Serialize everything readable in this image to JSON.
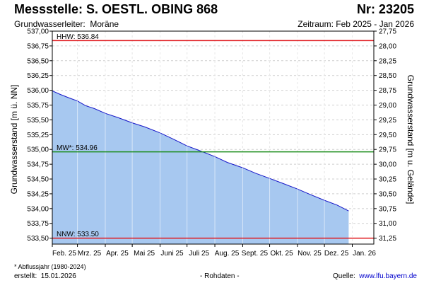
{
  "header": {
    "title": "Messstelle: S. OESTL. OBING 868",
    "number": "Nr: 23205",
    "aquifer_label": "Grundwasserleiter:",
    "aquifer_value": "Moräne",
    "period": "Zeitraum: Feb 2025 - Jan 2026"
  },
  "footer": {
    "footnote": "* Abflussjahr (1980-2024)",
    "created_label": "erstellt:",
    "created_date": "15.01.2026",
    "rawdata": "- Rohdaten -",
    "source_label": "Quelle:",
    "source_link": "www.lfu.bayern.de"
  },
  "colors": {
    "area_fill": "#a7c8f0",
    "series_line": "#1515c8",
    "hhw_line": "#e0191e",
    "nnw_line": "#e0191e",
    "mw_line": "#1a8c1a",
    "grid": "#cfcfcf",
    "source_link": "#0000cc"
  },
  "chart_data": {
    "type": "area",
    "ylabel_left": "Grundwasserstand [m ü. NN]",
    "ylabel_right": "Grundwasserstand [m u. Gelände]",
    "ylim": [
      533.4,
      537.0
    ],
    "yticks_left": [
      "537,00",
      "536,75",
      "536,50",
      "536,25",
      "536,00",
      "535,75",
      "535,50",
      "535,25",
      "535,00",
      "534,75",
      "534,50",
      "534,25",
      "534,00",
      "533,75",
      "533,50"
    ],
    "yticks_right": [
      "27,75",
      "28,00",
      "28,25",
      "28,50",
      "28,75",
      "29,00",
      "29,25",
      "29,50",
      "29,75",
      "30,00",
      "30,25",
      "30,50",
      "30,75",
      "31,00",
      "31,25"
    ],
    "xticks": [
      "Feb. 25",
      "Mrz. 25",
      "Apr. 25",
      "Mai 25",
      "Juni 25",
      "Juli 25",
      "Aug. 25",
      "Sept. 25",
      "Okt. 25",
      "Nov. 25",
      "Dez. 25",
      "Jan. 26"
    ],
    "grid": true,
    "reference_lines": [
      {
        "label": "HHW: 536.84",
        "value": 536.84,
        "key": "hhw"
      },
      {
        "label": "MW*: 534.96",
        "value": 534.96,
        "key": "mw"
      },
      {
        "label": "NNW: 533.50",
        "value": 533.5,
        "key": "nnw"
      }
    ],
    "series": [
      {
        "dates": [
          "2025-02-01",
          "2025-02-10",
          "2025-02-20",
          "2025-03-01",
          "2025-03-10",
          "2025-03-20",
          "2025-04-01",
          "2025-04-15",
          "2025-05-01",
          "2025-05-15",
          "2025-06-01",
          "2025-06-15",
          "2025-07-01",
          "2025-07-15",
          "2025-08-01",
          "2025-08-15",
          "2025-09-01",
          "2025-09-15",
          "2025-10-01",
          "2025-10-15",
          "2025-11-01",
          "2025-11-15",
          "2025-12-01",
          "2025-12-15",
          "2025-12-28"
        ],
        "values": [
          535.99,
          535.93,
          535.87,
          535.82,
          535.74,
          535.69,
          535.61,
          535.54,
          535.45,
          535.38,
          535.28,
          535.18,
          535.06,
          534.98,
          534.88,
          534.78,
          534.69,
          534.6,
          534.51,
          534.43,
          534.33,
          534.24,
          534.14,
          534.06,
          533.96
        ]
      }
    ]
  }
}
